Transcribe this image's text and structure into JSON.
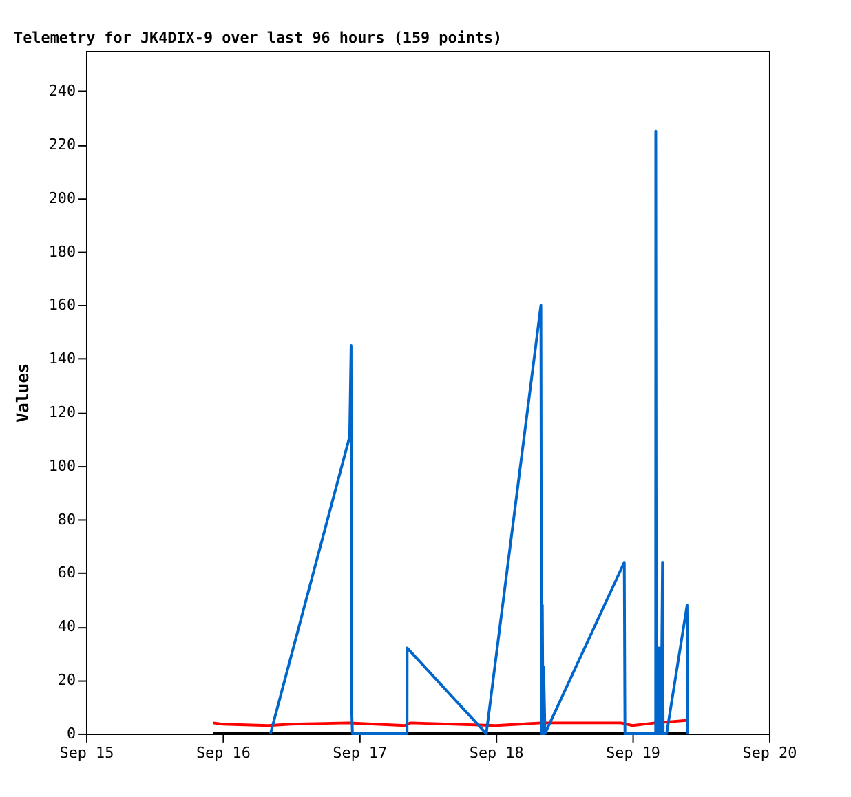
{
  "chart_data": {
    "type": "line",
    "title": "Telemetry for JK4DIX-9 over last 96 hours (159 points)",
    "ylabel": "Values",
    "xlim": [
      "--09-15",
      "--09-20"
    ],
    "xticks": [
      {
        "value": "--09-15",
        "label": "Sep 15"
      },
      {
        "value": "--09-16",
        "label": "Sep 16"
      },
      {
        "value": "--09-17",
        "label": "Sep 17"
      },
      {
        "value": "--09-18",
        "label": "Sep 18"
      },
      {
        "value": "--09-19",
        "label": "Sep 19"
      },
      {
        "value": "--09-20",
        "label": "Sep 20"
      }
    ],
    "ylim": [
      0,
      255
    ],
    "yticks": [
      0,
      20,
      40,
      60,
      80,
      100,
      120,
      140,
      160,
      180,
      200,
      220,
      240
    ],
    "grid": false,
    "legend": false,
    "series": [
      {
        "color": "#000000",
        "x": [
          "--09-15T22:19",
          "--09-19T09:50"
        ],
        "values": [
          0,
          0
        ]
      },
      {
        "color": "#ff0000",
        "x": [
          "--09-15T22:19",
          "--09-16T00:00",
          "--09-16T08:00",
          "--09-16T12:00",
          "--09-16T22:00",
          "--09-17T08:00",
          "--09-17T09:00",
          "--09-18T00:00",
          "--09-18T08:00",
          "--09-18T22:00",
          "--09-19T00:00",
          "--09-19T04:00",
          "--09-19T09:50"
        ],
        "values": [
          4,
          3.5,
          3,
          3.5,
          4,
          3,
          4,
          3,
          4,
          4,
          3,
          4,
          5
        ]
      },
      {
        "color": "#0066cc",
        "x": [
          "--09-16T08:24",
          "--09-16T22:19",
          "--09-16T22:34",
          "--09-16T22:41",
          "--09-16T22:48",
          "--09-17T08:24",
          "--09-17T08:25",
          "--09-17T22:19",
          "--09-18T07:55",
          "--09-18T08:02",
          "--09-18T08:10",
          "--09-18T08:17",
          "--09-18T08:24",
          "--09-18T08:38",
          "--09-18T22:34",
          "--09-18T22:41",
          "--09-19T04:05",
          "--09-19T04:06",
          "--09-19T04:12",
          "--09-19T04:19",
          "--09-19T04:26",
          "--09-19T04:34",
          "--09-19T04:41",
          "--09-19T04:48",
          "--09-19T05:02",
          "--09-19T05:17",
          "--09-19T05:24",
          "--09-19T06:00",
          "--09-19T09:36",
          "--09-19T09:43"
        ],
        "values": [
          0,
          111,
          145,
          8,
          0,
          0,
          32,
          0,
          160,
          0,
          48,
          0,
          25,
          0,
          64,
          0,
          0,
          225,
          0,
          27,
          0,
          32,
          0,
          32,
          0,
          64,
          0,
          0,
          48,
          0
        ]
      }
    ]
  }
}
